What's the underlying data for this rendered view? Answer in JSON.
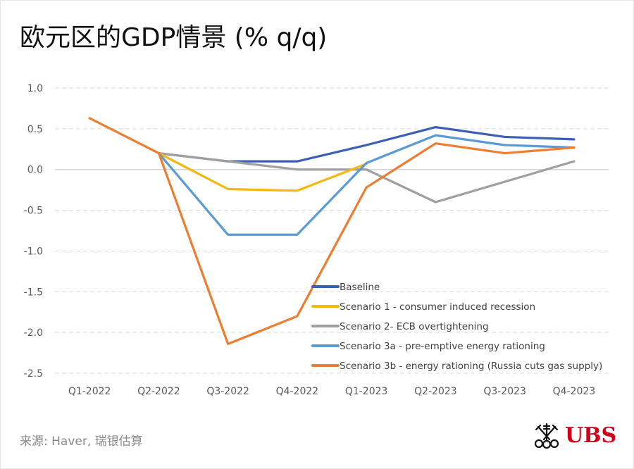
{
  "title": "欧元区的GDP情景 (% q/q)",
  "source": "来源: Haver, 瑞银估算",
  "brand": {
    "name": "UBS",
    "color": "#d0021b"
  },
  "chart_data": {
    "type": "line",
    "title": "欧元区的GDP情景 (% q/q)",
    "xlabel": "",
    "ylabel": "",
    "categories": [
      "Q1-2022",
      "Q2-2022",
      "Q3-2022",
      "Q4-2022",
      "Q1-2023",
      "Q2-2023",
      "Q3-2023",
      "Q4-2023"
    ],
    "ylim": [
      -2.5,
      1.0
    ],
    "yticks": [
      1.0,
      0.5,
      0.0,
      -0.5,
      -1.0,
      -1.5,
      -2.0,
      -2.5
    ],
    "ytick_labels": [
      "1.0",
      "0.5",
      "0.0",
      "-0.5",
      "-1.0",
      "-1.5",
      "-2.0",
      "-2.5"
    ],
    "grid": "horizontal-dashed",
    "legend_position": "bottom-right-inside",
    "series": [
      {
        "name": "Baseline",
        "color": "#3a5fb5",
        "values": [
          null,
          0.2,
          0.1,
          0.1,
          0.3,
          0.52,
          0.4,
          0.37
        ]
      },
      {
        "name": "Scenario 1 - consumer induced recession",
        "color": "#f5b811",
        "values": [
          null,
          0.2,
          -0.24,
          -0.26,
          0.07,
          null,
          null,
          null
        ]
      },
      {
        "name": "Scenario 2- ECB overtightening",
        "color": "#a0a0a0",
        "values": [
          null,
          0.2,
          0.1,
          0.0,
          0.0,
          -0.4,
          -0.15,
          0.1
        ]
      },
      {
        "name": "Scenario 3a - pre-emptive energy rationing",
        "color": "#5b9bd5",
        "values": [
          null,
          0.2,
          -0.8,
          -0.8,
          0.08,
          0.42,
          0.3,
          0.27
        ]
      },
      {
        "name": "Scenario 3b - energy rationing (Russia cuts gas supply)",
        "color": "#ed7d31",
        "values": [
          0.63,
          0.2,
          -2.14,
          -1.8,
          -0.22,
          0.32,
          0.2,
          0.27
        ]
      }
    ]
  }
}
